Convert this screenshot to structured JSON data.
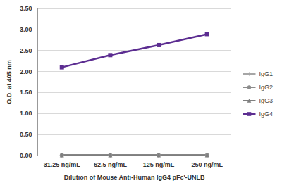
{
  "chart_data": {
    "type": "line",
    "x_label": "Dilution of Mouse Anti-Human IgG4 pFc'-UNLB",
    "y_label": "O.D. at 405 nm",
    "categories": [
      "31.25 ng/mL",
      "62.5 ng/mL",
      "125 ng/mL",
      "250 ng/mL"
    ],
    "series": [
      {
        "name": "IgG1",
        "color": "#a6a6a6",
        "marker": "diamond",
        "values": [
          0.01,
          0.01,
          0.01,
          0.01
        ]
      },
      {
        "name": "IgG2",
        "color": "#8c8c8c",
        "marker": "circle",
        "values": [
          0.01,
          0.01,
          0.01,
          0.01
        ]
      },
      {
        "name": "IgG3",
        "color": "#7f7f7f",
        "marker": "triangle",
        "values": [
          0.01,
          0.01,
          0.01,
          0.01
        ]
      },
      {
        "name": "IgG4",
        "color": "#5c2d91",
        "marker": "square",
        "values": [
          2.1,
          2.39,
          2.63,
          2.89
        ]
      }
    ],
    "ylim": [
      0,
      3.5
    ],
    "yticks": [
      {
        "value": 0,
        "label": "0.00"
      },
      {
        "value": 0.5,
        "label": "0.50"
      },
      {
        "value": 1,
        "label": "1.00"
      },
      {
        "value": 1.5,
        "label": "1.50"
      },
      {
        "value": 2,
        "label": "2.00"
      },
      {
        "value": 2.5,
        "label": "2.50"
      },
      {
        "value": 3,
        "label": "3.00"
      },
      {
        "value": 3.5,
        "label": "3.50"
      }
    ],
    "grid": true,
    "legend": "right"
  }
}
